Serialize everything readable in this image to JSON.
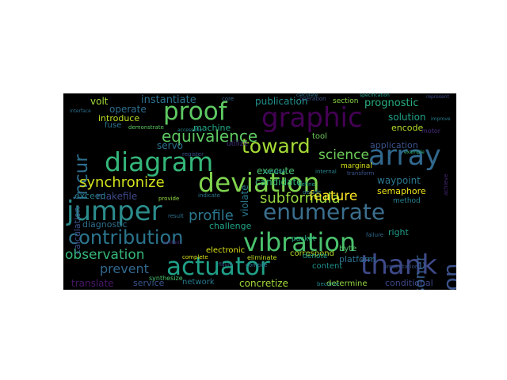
{
  "word_cloud": {
    "background": "#000000",
    "words": [
      {
        "text": "diagram",
        "color": "#34b679"
      },
      {
        "text": "deviation",
        "color": "#7fd34e"
      },
      {
        "text": "actuator",
        "color": "#1fa088"
      },
      {
        "text": "proof",
        "color": "#5ec962"
      },
      {
        "text": "graphic",
        "color": "#440154"
      },
      {
        "text": "enumerate",
        "color": "#3b6f8e"
      },
      {
        "text": "jumper",
        "color": "#2c8c8c"
      },
      {
        "text": "thank",
        "color": "#3e4989"
      },
      {
        "text": "vibration",
        "color": "#4ac16d"
      },
      {
        "text": "array",
        "color": "#31688e"
      },
      {
        "text": "contribution",
        "color": "#2b758e"
      },
      {
        "text": "toward",
        "color": "#a5db36"
      },
      {
        "text": "annotation",
        "color": "#3b528b"
      },
      {
        "text": "incur",
        "color": "#2e6f8e"
      },
      {
        "text": "equivalence",
        "color": "#5ec962"
      },
      {
        "text": "synchronize",
        "color": "#d2e21b"
      },
      {
        "text": "profile",
        "color": "#2a788e"
      },
      {
        "text": "subformula",
        "color": "#95d840"
      },
      {
        "text": "feature",
        "color": "#fde725"
      },
      {
        "text": "observation",
        "color": "#35b779"
      },
      {
        "text": "science",
        "color": "#6ece58"
      },
      {
        "text": "reasoner",
        "color": "#365d8d"
      },
      {
        "text": "prevent",
        "color": "#31688e"
      },
      {
        "text": "instantiate",
        "color": "#2c728e"
      },
      {
        "text": "publication",
        "color": "#21918c"
      },
      {
        "text": "prognostic",
        "color": "#29af7f"
      },
      {
        "text": "introduce",
        "color": "#bddf26"
      },
      {
        "text": "volt",
        "color": "#a0da39"
      },
      {
        "text": "operate",
        "color": "#2e6e8e"
      },
      {
        "text": "solution",
        "color": "#1fa187"
      },
      {
        "text": "encode",
        "color": "#b5de2b"
      },
      {
        "text": "servo",
        "color": "#2d708e"
      },
      {
        "text": "machine",
        "color": "#22a884"
      },
      {
        "text": "violate",
        "color": "#2a788e"
      },
      {
        "text": "application",
        "color": "#3b528b"
      },
      {
        "text": "execute",
        "color": "#4ac16d"
      },
      {
        "text": "candidate",
        "color": "#35b779"
      },
      {
        "text": "makefile",
        "color": "#3e4a89"
      },
      {
        "text": "waypoint",
        "color": "#2a788e"
      },
      {
        "text": "semaphore",
        "color": "#f1e51d"
      },
      {
        "text": "calculation",
        "color": "#3b528b"
      },
      {
        "text": "exceed",
        "color": "#287c8e"
      },
      {
        "text": "diagnostic",
        "color": "#2d708e"
      },
      {
        "text": "challenge",
        "color": "#20a386"
      },
      {
        "text": "correspond",
        "color": "#b8de29"
      },
      {
        "text": "electronic",
        "color": "#dde318"
      },
      {
        "text": "platform",
        "color": "#2c728e"
      },
      {
        "text": "right",
        "color": "#1f9e89"
      },
      {
        "text": "byte",
        "color": "#54c568"
      },
      {
        "text": "content",
        "color": "#21918c"
      },
      {
        "text": "service",
        "color": "#39568c"
      },
      {
        "text": "network",
        "color": "#2a788e"
      },
      {
        "text": "concretize",
        "color": "#a2da37"
      },
      {
        "text": "determine",
        "color": "#93d741"
      },
      {
        "text": "conditional",
        "color": "#3e4989"
      },
      {
        "text": "translate",
        "color": "#481769"
      },
      {
        "text": "tool",
        "color": "#6ece58"
      },
      {
        "text": "section",
        "color": "#8bd646"
      },
      {
        "text": "fuse",
        "color": "#2c728e"
      },
      {
        "text": "utilize",
        "color": "#46327e"
      },
      {
        "text": "method",
        "color": "#26828e"
      },
      {
        "text": "packet",
        "color": "#26ad81"
      },
      {
        "text": "denote",
        "color": "#1f978b"
      },
      {
        "text": "eliminate",
        "color": "#c2df23"
      },
      {
        "text": "complete",
        "color": "#dde318"
      },
      {
        "text": "failure",
        "color": "#306a8e"
      },
      {
        "text": "marginal",
        "color": "#d8e219"
      },
      {
        "text": "motor",
        "color": "#472d7b"
      },
      {
        "text": "variable",
        "color": "#23888e"
      },
      {
        "text": "decide",
        "color": "#2a788e"
      },
      {
        "text": "synthesize",
        "color": "#4ac16d"
      },
      {
        "text": "become",
        "color": "#238a8d"
      },
      {
        "text": "operation",
        "color": "#3b528b"
      },
      {
        "text": "calculate",
        "color": "#2e6e8e"
      },
      {
        "text": "specification",
        "color": "#1f9e89"
      },
      {
        "text": "represent",
        "color": "#3e4989"
      },
      {
        "text": "core",
        "color": "#31688e"
      },
      {
        "text": "demonstrate",
        "color": "#5ec962"
      },
      {
        "text": "provide",
        "color": "#90d743"
      },
      {
        "text": "indicate",
        "color": "#2a788e"
      },
      {
        "text": "compile",
        "color": "#2f6c8e"
      },
      {
        "text": "presentation",
        "color": "#3b528b"
      },
      {
        "text": "internal",
        "color": "#25848e"
      },
      {
        "text": "transform",
        "color": "#39568c"
      },
      {
        "text": "contain",
        "color": "#472f7d"
      },
      {
        "text": "figure",
        "color": "#3a548c"
      },
      {
        "text": "register",
        "color": "#3b528b"
      },
      {
        "text": "result",
        "color": "#2c728e"
      },
      {
        "text": "achieve",
        "color": "#482878"
      },
      {
        "text": "improve",
        "color": "#287d8e"
      },
      {
        "text": "accessible",
        "color": "#24878e"
      },
      {
        "text": "interface",
        "color": "#2d708e"
      },
      {
        "text": "example",
        "color": "#35b779"
      },
      {
        "text": "define",
        "color": "#1fa088"
      }
    ]
  }
}
